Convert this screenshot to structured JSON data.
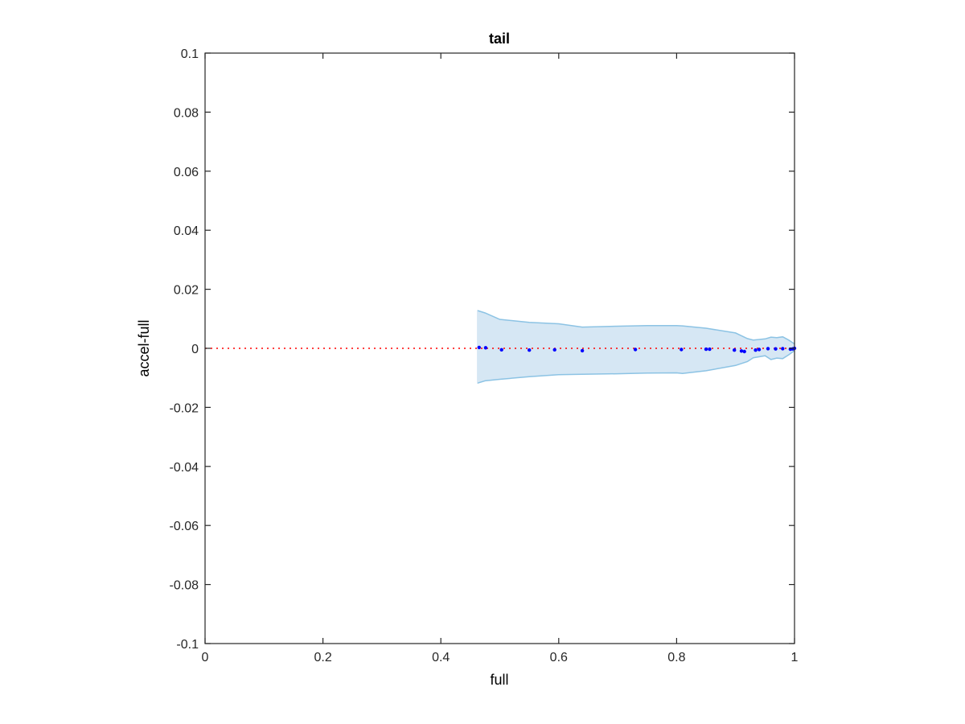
{
  "chart_data": {
    "type": "scatter",
    "title": "tail",
    "xlabel": "full",
    "ylabel": "accel-full",
    "xlim": [
      0,
      1
    ],
    "ylim": [
      -0.1,
      0.1
    ],
    "xticks": [
      "0",
      "0.2",
      "0.4",
      "0.6",
      "0.8",
      "1"
    ],
    "xtick_values": [
      0,
      0.2,
      0.4,
      0.6,
      0.8,
      1
    ],
    "yticks": [
      "-0.1",
      "-0.08",
      "-0.06",
      "-0.04",
      "-0.02",
      "0",
      "0.02",
      "0.04",
      "0.06",
      "0.08",
      "0.1"
    ],
    "ytick_values": [
      -0.1,
      -0.08,
      -0.06,
      -0.04,
      -0.02,
      0,
      0.02,
      0.04,
      0.06,
      0.08,
      0.1
    ],
    "grid": false,
    "reference_line": {
      "y": 0,
      "style": "dotted",
      "color": "#ff0000"
    },
    "band": {
      "color": "#d6e7f4",
      "edge_color": "#8cc3e4",
      "x": [
        0.462,
        0.475,
        0.5,
        0.55,
        0.6,
        0.64,
        0.7,
        0.75,
        0.8,
        0.81,
        0.85,
        0.9,
        0.92,
        0.93,
        0.95,
        0.96,
        0.97,
        0.98,
        0.99,
        1.0
      ],
      "upper": [
        0.0128,
        0.012,
        0.0098,
        0.0088,
        0.0083,
        0.0072,
        0.0075,
        0.0077,
        0.0077,
        0.0076,
        0.0068,
        0.0052,
        0.0033,
        0.0028,
        0.0032,
        0.0038,
        0.0036,
        0.0039,
        0.0028,
        0.0015
      ],
      "lower": [
        -0.0118,
        -0.011,
        -0.0105,
        -0.0096,
        -0.0089,
        -0.0088,
        -0.0086,
        -0.0084,
        -0.0083,
        -0.0085,
        -0.0076,
        -0.0058,
        -0.0045,
        -0.0032,
        -0.0025,
        -0.0038,
        -0.0033,
        -0.0035,
        -0.0022,
        -0.0008
      ]
    },
    "series": [
      {
        "color": "#0000ff",
        "x": [
          0.465,
          0.476,
          0.503,
          0.55,
          0.593,
          0.64,
          0.73,
          0.808,
          0.85,
          0.856,
          0.898,
          0.91,
          0.915,
          0.934,
          0.94,
          0.955,
          0.968,
          0.98,
          0.993,
          0.997,
          1.0
        ],
        "y": [
          0.0003,
          0.0002,
          -0.0005,
          -0.0006,
          -0.0005,
          -0.0008,
          -0.0004,
          -0.0004,
          -0.0003,
          -0.0003,
          -0.0006,
          -0.0009,
          -0.0011,
          -0.0006,
          -0.0004,
          -0.0001,
          -0.0002,
          -0.0001,
          -0.0003,
          -0.0002,
          0.0
        ]
      }
    ]
  }
}
